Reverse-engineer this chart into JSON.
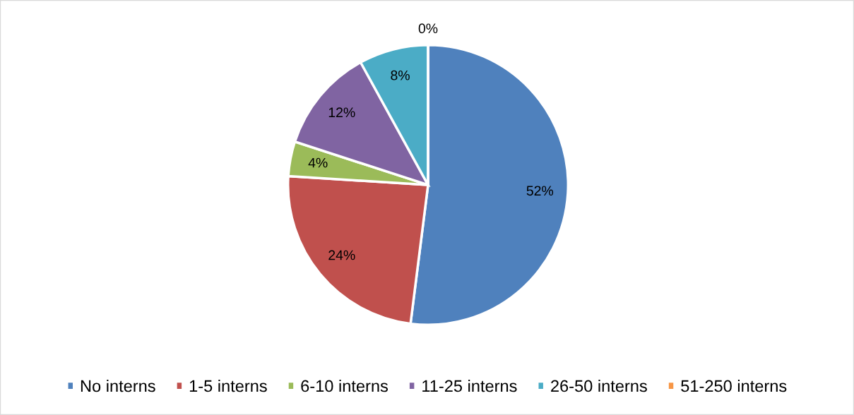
{
  "chart_data": {
    "type": "pie",
    "categories": [
      "No interns",
      "1-5 interns",
      "6-10 interns",
      "11-25 interns",
      "26-50 interns",
      "51-250 interns"
    ],
    "values": [
      52,
      24,
      4,
      12,
      8,
      0
    ],
    "value_labels": [
      "52%",
      "24%",
      "4%",
      "12%",
      "8%",
      "0%"
    ],
    "colors": [
      "#4f81bd",
      "#c0504d",
      "#9bbb59",
      "#8064a2",
      "#4bacc6",
      "#f79646"
    ],
    "legend": "bottom"
  }
}
